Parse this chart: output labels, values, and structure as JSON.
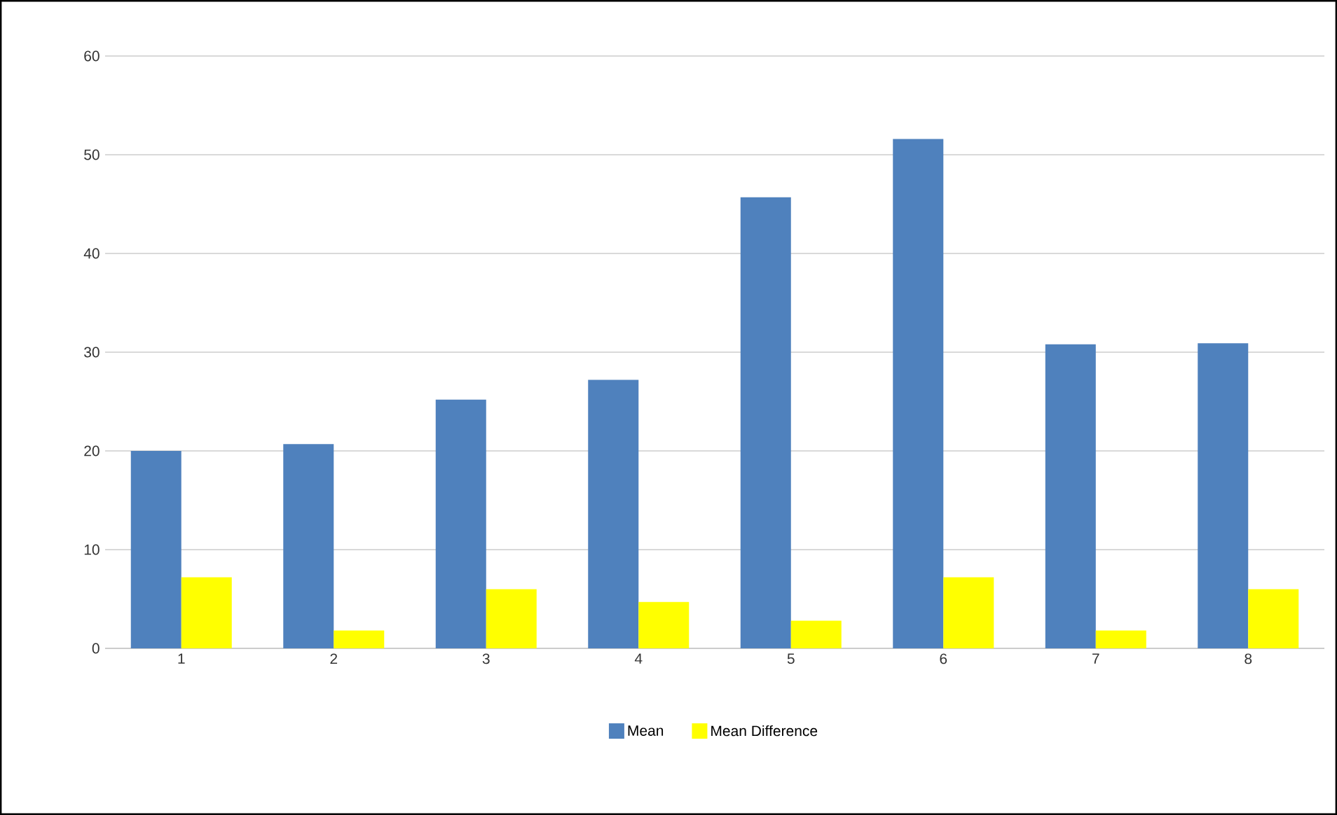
{
  "chart_data": {
    "type": "bar",
    "categories": [
      "1",
      "2",
      "3",
      "4",
      "5",
      "6",
      "7",
      "8"
    ],
    "series": [
      {
        "name": "Mean",
        "color": "#4f81bd",
        "values": [
          20.0,
          20.7,
          25.2,
          27.2,
          45.7,
          51.6,
          30.8,
          30.9
        ]
      },
      {
        "name": "Mean Difference",
        "color": "#ffff00",
        "values": [
          7.2,
          1.8,
          6.0,
          4.7,
          2.8,
          7.2,
          1.8,
          6.0
        ]
      }
    ],
    "ylim": [
      0,
      60
    ],
    "yticks": [
      0,
      10,
      20,
      30,
      40,
      50,
      60
    ],
    "grid": "y",
    "legend": "bottom"
  }
}
